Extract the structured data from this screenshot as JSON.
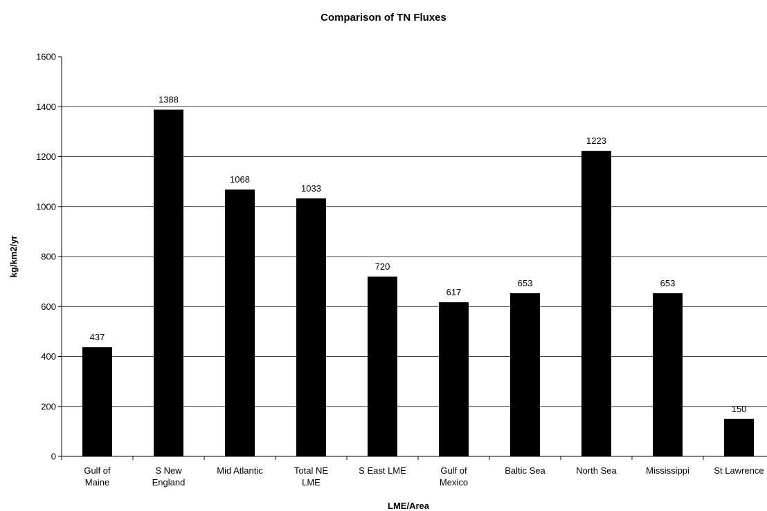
{
  "chart_data": {
    "type": "bar",
    "title": "Comparison of TN Fluxes",
    "xlabel": "LME/Area",
    "ylabel": "kg/km2/yr",
    "categories": [
      "Gulf of\nMaine",
      "S New\nEngland",
      "Mid Atlantic",
      "Total NE\nLME",
      "S East LME",
      "Gulf of\nMexico",
      "Baltic Sea",
      "North Sea",
      "Mississippi",
      "St Lawrence"
    ],
    "values": [
      437,
      1388,
      1068,
      1033,
      720,
      617,
      653,
      1223,
      653,
      150
    ],
    "color": "#000000",
    "ylim": [
      0,
      1600
    ],
    "yticks": [
      0,
      200,
      400,
      600,
      800,
      1000,
      1200,
      1400,
      1600
    ],
    "grid": true
  }
}
